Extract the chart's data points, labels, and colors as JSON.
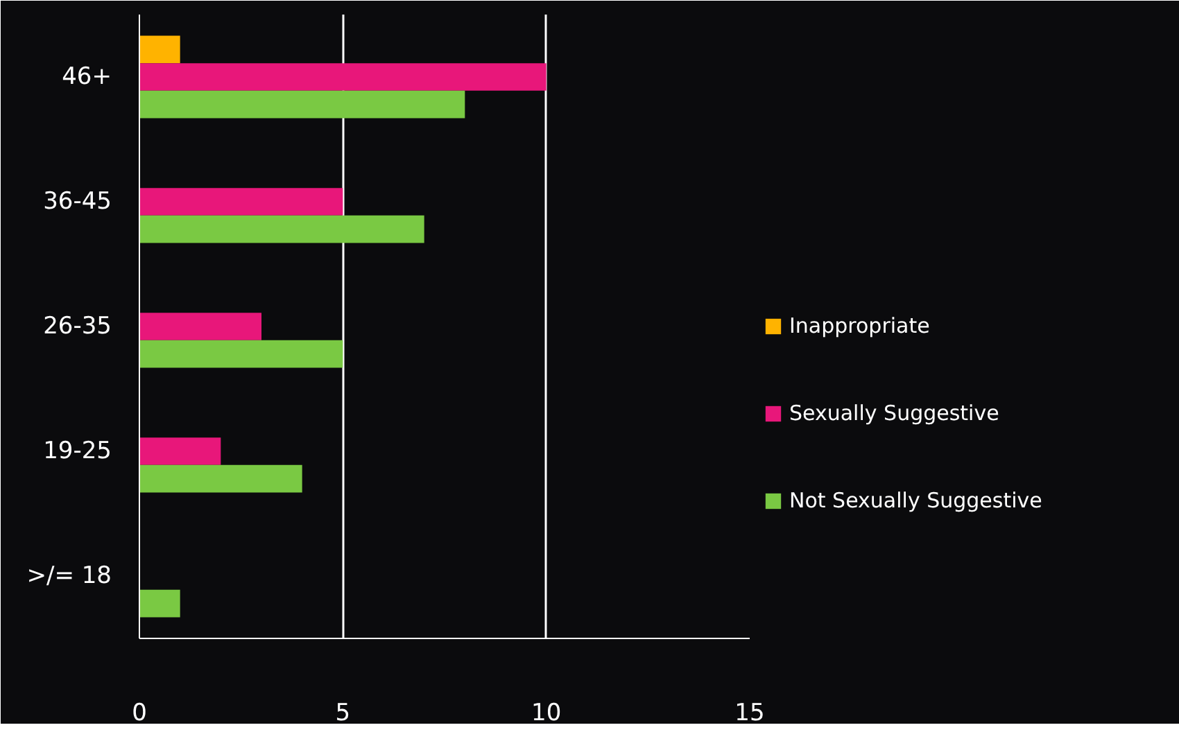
{
  "chart_data": {
    "type": "bar",
    "orientation": "horizontal",
    "categories": [
      "46+",
      "36-45",
      "26-35",
      "19-25",
      ">/= 18"
    ],
    "series": [
      {
        "name": "Inappropriate",
        "color": "#ffb300",
        "values": [
          1,
          null,
          null,
          null,
          null
        ]
      },
      {
        "name": "Sexually Suggestive",
        "color": "#e8177a",
        "values": [
          10,
          5,
          3,
          2,
          null
        ]
      },
      {
        "name": "Not Sexually Suggestive",
        "color": "#7ac943",
        "values": [
          8,
          7,
          5,
          4,
          1
        ]
      }
    ],
    "xlim": [
      0,
      15
    ],
    "xticks": [
      0,
      5,
      10,
      15
    ],
    "grid": "x",
    "legend": "right"
  }
}
